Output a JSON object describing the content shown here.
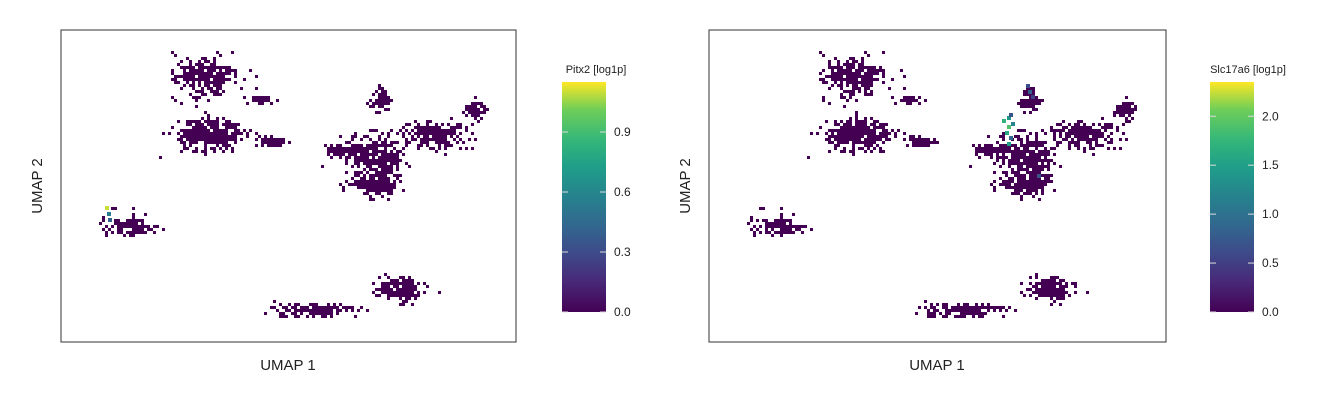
{
  "chart_data": [
    {
      "type": "scatter",
      "title": "",
      "xlabel": "UMAP 1",
      "ylabel": "UMAP 2",
      "xlim": [
        0,
        100
      ],
      "ylim": [
        0,
        100
      ],
      "grid": false,
      "colorbar": {
        "label": "Pitx2 [log1p]",
        "min": 0.0,
        "max": 1.15,
        "colormap": "viridis",
        "ticks": [
          "0.0",
          "0.3",
          "0.6",
          "0.9"
        ],
        "tick_values": [
          0.0,
          0.3,
          0.6,
          0.9
        ]
      },
      "clusters": [
        {
          "x": 30,
          "y": 88,
          "spread": [
            6,
            6
          ]
        },
        {
          "x": 31,
          "y": 68,
          "spread": [
            7,
            5
          ]
        },
        {
          "x": 43,
          "y": 80,
          "spread": [
            3,
            1
          ]
        },
        {
          "x": 46,
          "y": 66,
          "spread": [
            3,
            2
          ]
        },
        {
          "x": 62,
          "y": 63,
          "spread": [
            4,
            2
          ]
        },
        {
          "x": 70,
          "y": 60,
          "spread": [
            6,
            6
          ]
        },
        {
          "x": 70,
          "y": 51,
          "spread": [
            5,
            4
          ]
        },
        {
          "x": 71,
          "y": 80,
          "spread": [
            2,
            4
          ]
        },
        {
          "x": 83,
          "y": 68,
          "spread": [
            7,
            4
          ]
        },
        {
          "x": 93,
          "y": 76,
          "spread": [
            2,
            3
          ]
        },
        {
          "x": 13,
          "y": 37,
          "spread": [
            5,
            3
          ]
        },
        {
          "x": 76,
          "y": 15,
          "spread": [
            5,
            4
          ]
        },
        {
          "x": 56,
          "y": 8,
          "spread": [
            8,
            2
          ]
        }
      ],
      "highlights": [
        {
          "x": 7.5,
          "y": 43,
          "value": 1.1
        },
        {
          "x": 7.8,
          "y": 41,
          "value": 0.55
        },
        {
          "x": 8.2,
          "y": 39,
          "value": 0.4
        }
      ]
    },
    {
      "type": "scatter",
      "title": "",
      "xlabel": "UMAP 1",
      "ylabel": "UMAP 2",
      "xlim": [
        0,
        100
      ],
      "ylim": [
        0,
        100
      ],
      "grid": false,
      "colorbar": {
        "label": "Slc17a6 [log1p]",
        "min": 0.0,
        "max": 2.35,
        "colormap": "viridis",
        "ticks": [
          "0.0",
          "0.5",
          "1.0",
          "1.5",
          "2.0"
        ],
        "tick_values": [
          0.0,
          0.5,
          1.0,
          1.5,
          2.0
        ]
      },
      "clusters": [
        {
          "x": 30,
          "y": 88,
          "spread": [
            6,
            6
          ]
        },
        {
          "x": 31,
          "y": 68,
          "spread": [
            7,
            5
          ]
        },
        {
          "x": 43,
          "y": 80,
          "spread": [
            3,
            1
          ]
        },
        {
          "x": 46,
          "y": 66,
          "spread": [
            3,
            2
          ]
        },
        {
          "x": 62,
          "y": 63,
          "spread": [
            4,
            2
          ]
        },
        {
          "x": 70,
          "y": 60,
          "spread": [
            6,
            6
          ]
        },
        {
          "x": 70,
          "y": 51,
          "spread": [
            5,
            4
          ]
        },
        {
          "x": 71,
          "y": 80,
          "spread": [
            2,
            4
          ]
        },
        {
          "x": 83,
          "y": 68,
          "spread": [
            7,
            4
          ]
        },
        {
          "x": 93,
          "y": 76,
          "spread": [
            2,
            3
          ]
        },
        {
          "x": 13,
          "y": 37,
          "spread": [
            5,
            3
          ]
        },
        {
          "x": 76,
          "y": 15,
          "spread": [
            5,
            4
          ]
        },
        {
          "x": 56,
          "y": 8,
          "spread": [
            8,
            2
          ]
        }
      ],
      "highlights": [
        {
          "x": 71,
          "y": 83,
          "value": 0.8
        },
        {
          "x": 71.5,
          "y": 81,
          "value": 0.5
        },
        {
          "x": 70.5,
          "y": 85,
          "value": 0.6
        },
        {
          "x": 65,
          "y": 73,
          "value": 1.7
        },
        {
          "x": 66,
          "y": 74,
          "value": 1.4
        },
        {
          "x": 66.5,
          "y": 75,
          "value": 0.7
        },
        {
          "x": 66,
          "y": 71,
          "value": 1.9
        },
        {
          "x": 67,
          "y": 72,
          "value": 1.2
        },
        {
          "x": 65.5,
          "y": 69,
          "value": 1.6
        },
        {
          "x": 66.5,
          "y": 67,
          "value": 0.9
        },
        {
          "x": 66,
          "y": 65,
          "value": 1.5
        },
        {
          "x": 73,
          "y": 54,
          "value": 0.7
        }
      ]
    }
  ]
}
